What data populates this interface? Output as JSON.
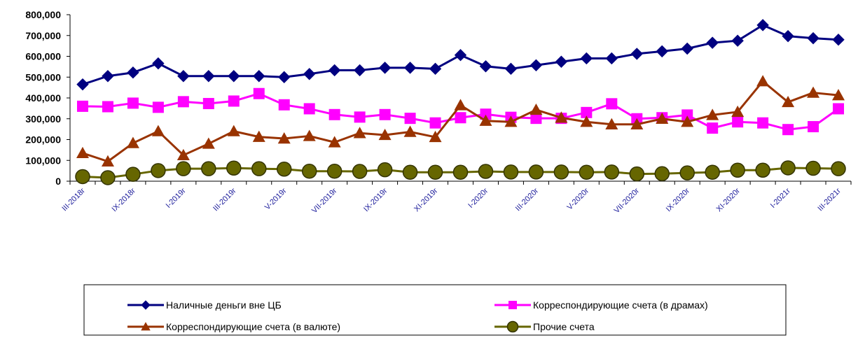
{
  "chart_data": {
    "type": "line",
    "title": "",
    "xlabel": "",
    "ylabel": "",
    "ylim": [
      0,
      800000
    ],
    "y_ticks": [
      "0",
      "100,000",
      "200,000",
      "300,000",
      "400,000",
      "500,000",
      "600,000",
      "700,000",
      "800,000"
    ],
    "grid": false,
    "legend_position": "bottom",
    "categories": [
      "III-2018г",
      "",
      "IX-2018г",
      "",
      "I-2019г",
      "",
      "III-2019г",
      "",
      "V-2019г",
      "",
      "VII-2019г",
      "",
      "IX-2019г",
      "",
      "XI-2019г",
      "",
      "I-2020г",
      "",
      "III-2020г",
      "",
      "V-2020г",
      "",
      "VII-2020г",
      "",
      "IX-2020г",
      "",
      "XI-2020г",
      "",
      "I-2021г",
      "",
      "III-2021г"
    ],
    "series": [
      {
        "name": "Наличные деньги вне ЦБ",
        "color": "#000080",
        "marker": "diamond",
        "values": [
          465000,
          505000,
          522000,
          566000,
          505000,
          505000,
          505000,
          505000,
          500000,
          515000,
          533000,
          533000,
          545000,
          545000,
          540000,
          606000,
          552000,
          540000,
          557000,
          574000,
          590000,
          590000,
          612000,
          624000,
          637000,
          665000,
          675000,
          750000,
          697000,
          687000,
          680000
        ]
      },
      {
        "name": "Корреспондирующие счета (в драмах)",
        "color": "#ff00ff",
        "marker": "square",
        "values": [
          360000,
          358000,
          375000,
          355000,
          382000,
          373000,
          385000,
          421000,
          367000,
          348000,
          320000,
          308000,
          320000,
          302000,
          280000,
          305000,
          322000,
          307000,
          302000,
          302000,
          330000,
          372000,
          300000,
          305000,
          318000,
          255000,
          285000,
          280000,
          248000,
          262000,
          348000
        ]
      },
      {
        "name": "Корреспондирующие счета (в валюте)",
        "color": "#993300",
        "marker": "triangle",
        "values": [
          135000,
          95000,
          183000,
          240000,
          125000,
          180000,
          240000,
          213000,
          205000,
          217000,
          187000,
          231000,
          222000,
          237000,
          212000,
          365000,
          290000,
          285000,
          343000,
          305000,
          285000,
          273000,
          273000,
          300000,
          285000,
          318000,
          333000,
          480000,
          380000,
          425000,
          413000
        ]
      },
      {
        "name": "Прочие счета",
        "color": "#666600",
        "marker": "circle",
        "values": [
          22000,
          17000,
          33000,
          51000,
          60000,
          60000,
          63000,
          60000,
          58000,
          48000,
          48000,
          47000,
          55000,
          43000,
          43000,
          43000,
          47000,
          44000,
          44000,
          44000,
          43000,
          44000,
          35000,
          36000,
          40000,
          43000,
          53000,
          53000,
          64000,
          62000,
          60000
        ]
      }
    ]
  }
}
